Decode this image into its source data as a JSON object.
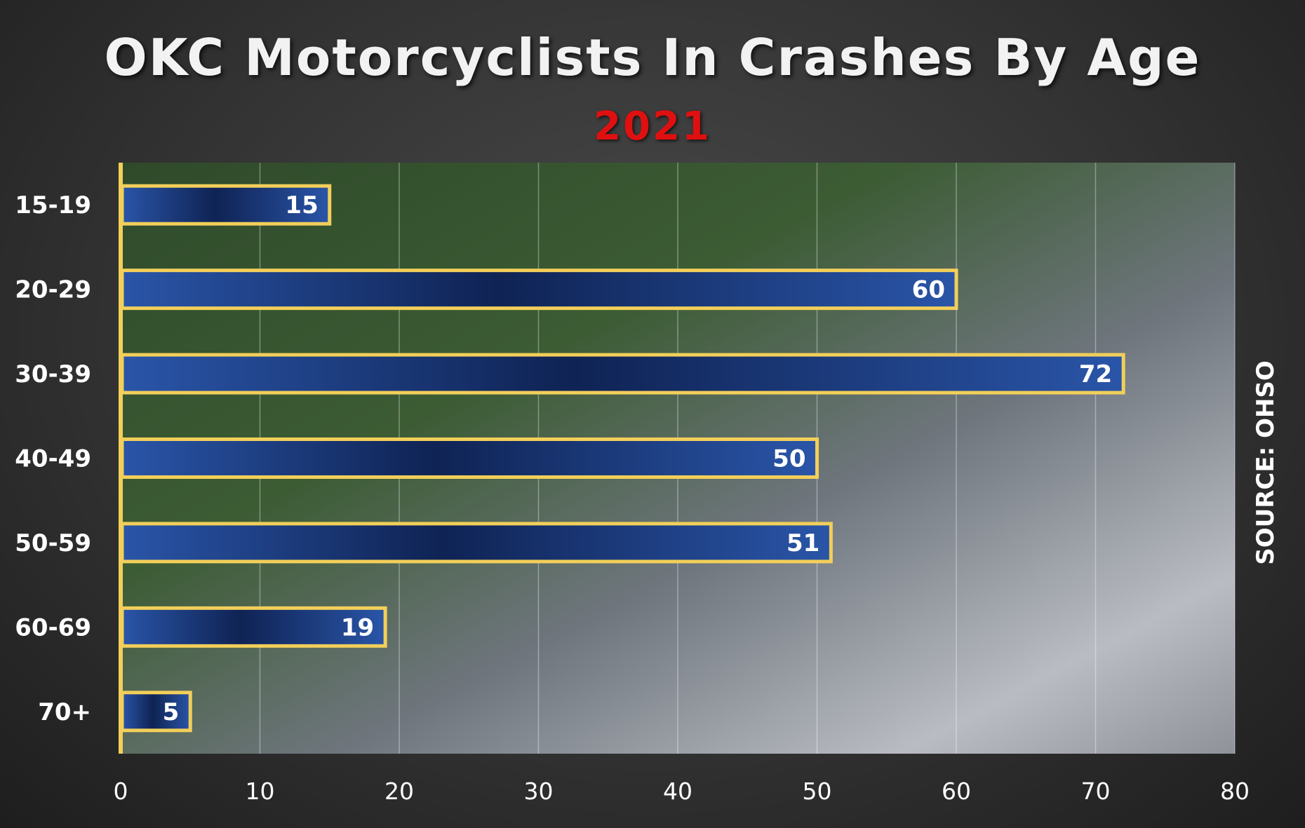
{
  "chart_data": {
    "type": "bar",
    "orientation": "horizontal",
    "title": "OKC Motorcyclists In Crashes By Age",
    "subtitle": "2021",
    "source": "SOURCE: OHSO",
    "categories": [
      "15-19",
      "20-29",
      "30-39",
      "40-49",
      "50-59",
      "60-69",
      "70+"
    ],
    "values": [
      15,
      60,
      72,
      50,
      51,
      19,
      5
    ],
    "xlim": [
      0,
      80
    ],
    "xticks": [
      "0",
      "10",
      "20",
      "30",
      "40",
      "50",
      "60",
      "70",
      "80"
    ],
    "grid": true,
    "data_labels": true
  },
  "colors": {
    "bar_fill": "#1d3f86",
    "bar_dark": "#0f2354",
    "bar_border": "#f2cf5a",
    "title_color": "#f2f2f2",
    "subtitle_color": "#e01010"
  }
}
